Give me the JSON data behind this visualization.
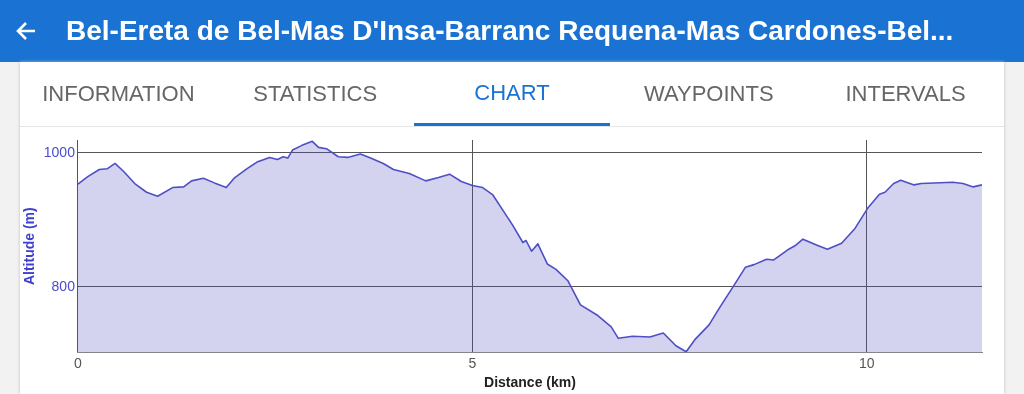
{
  "chart_data": {
    "type": "area",
    "title": "Bel-Ereta de Bel-Mas D'Insa-Barranc Requena-Mas Cardones-Bel...",
    "annotations": [
      "INFORMATION",
      "STATISTICS",
      "CHART",
      "WAYPOINTS",
      "INTERVALS"
    ],
    "xlabel": "Distance (km)",
    "ylabel": "Altitude (m)",
    "xlim": [
      0,
      11.46
    ],
    "xticks": [
      0,
      5,
      10
    ],
    "ylim": [
      702,
      1019
    ],
    "yticks": [
      800,
      1000
    ],
    "grid": true,
    "marker": "none",
    "series": [
      {
        "color": "#4f4fc4",
        "x": [
          0,
          0.12,
          0.27,
          0.37,
          0.47,
          0.58,
          0.72,
          0.87,
          1.01,
          1.2,
          1.34,
          1.44,
          1.59,
          1.73,
          1.88,
          1.98,
          2.14,
          2.27,
          2.43,
          2.53,
          2.6,
          2.66,
          2.72,
          2.84,
          2.97,
          3.05,
          3.15,
          3.3,
          3.42,
          3.58,
          3.71,
          3.87,
          4.0,
          4.2,
          4.41,
          4.57,
          4.71,
          4.86,
          5.0,
          5.13,
          5.26,
          5.51,
          5.64,
          5.68,
          5.75,
          5.83,
          5.95,
          6.06,
          6.21,
          6.37,
          6.59,
          6.76,
          6.85,
          7.03,
          7.25,
          7.42,
          7.58,
          7.71,
          7.82,
          8.0,
          8.13,
          8.31,
          8.46,
          8.57,
          8.73,
          8.82,
          9.01,
          9.1,
          9.19,
          9.37,
          9.5,
          9.68,
          9.85,
          10.01,
          10.16,
          10.23,
          10.34,
          10.43,
          10.6,
          10.69,
          11.09,
          11.22,
          11.35,
          11.46
        ],
        "values": [
          953,
          964,
          975,
          976,
          984,
          972,
          954,
          941,
          935,
          948,
          949,
          958,
          962,
          955,
          948,
          962,
          976,
          986,
          993,
          990,
          994,
          992,
          1004,
          1011,
          1017,
          1008,
          1006,
          994,
          993,
          998,
          992,
          984,
          975,
          969,
          958,
          963,
          968,
          957,
          951,
          948,
          937,
          892,
          866,
          869,
          853,
          864,
          834,
          826,
          809,
          773,
          757,
          740,
          723,
          726,
          725,
          731,
          712,
          703,
          721,
          743,
          768,
          801,
          829,
          833,
          841,
          840,
          856,
          862,
          871,
          862,
          856,
          865,
          887,
          917,
          938,
          941,
          954,
          959,
          952,
          954,
          956,
          954,
          949,
          952
        ]
      }
    ]
  }
}
